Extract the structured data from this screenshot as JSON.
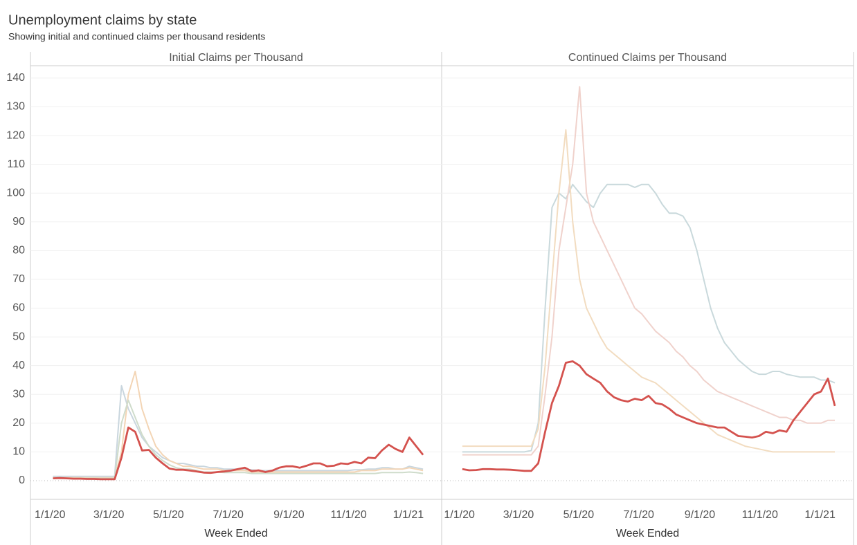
{
  "title": "Unemployment claims by state",
  "subtitle": "Showing initial and continued claims per thousand residents",
  "chart_data": [
    {
      "type": "line",
      "title": "Initial Claims per Thousand",
      "xlabel": "Week Ended",
      "x": [
        "1/4/20",
        "1/11/20",
        "1/18/20",
        "1/25/20",
        "2/1/20",
        "2/8/20",
        "2/15/20",
        "2/22/20",
        "2/29/20",
        "3/7/20",
        "3/14/20",
        "3/21/20",
        "3/28/20",
        "4/4/20",
        "4/11/20",
        "4/18/20",
        "4/25/20",
        "5/2/20",
        "5/9/20",
        "5/16/20",
        "5/23/20",
        "5/30/20",
        "6/6/20",
        "6/13/20",
        "6/20/20",
        "6/27/20",
        "7/4/20",
        "7/11/20",
        "7/18/20",
        "7/25/20",
        "8/1/20",
        "8/8/20",
        "8/15/20",
        "8/22/20",
        "8/29/20",
        "9/5/20",
        "9/12/20",
        "9/19/20",
        "9/26/20",
        "10/3/20",
        "10/10/20",
        "10/17/20",
        "10/24/20",
        "10/31/20",
        "11/7/20",
        "11/14/20",
        "11/21/20",
        "11/28/20",
        "12/5/20",
        "12/12/20",
        "12/19/20",
        "12/26/20",
        "1/2/21",
        "1/9/21",
        "1/16/21"
      ],
      "xlim": [
        "12/12/19",
        "2/4/21"
      ],
      "xticks": [
        "1/1/20",
        "3/1/20",
        "5/1/20",
        "7/1/20",
        "9/1/20",
        "11/1/20",
        "1/1/21"
      ],
      "ylim": [
        -6.5,
        144.3
      ],
      "yticks": [
        0,
        10,
        20,
        30,
        40,
        50,
        60,
        70,
        80,
        90,
        100,
        110,
        120,
        130,
        140
      ],
      "grid": true,
      "series": [
        {
          "color": "#c9d6de",
          "values": [
            1.5,
            1.5,
            1.5,
            1.5,
            1.5,
            1.5,
            1.5,
            1.5,
            1.5,
            1.5,
            33,
            25,
            20,
            15,
            12,
            10,
            8,
            7,
            6,
            6,
            5.5,
            5,
            5,
            4.5,
            4.5,
            4,
            4,
            4,
            4,
            3.8,
            3.5,
            3.5,
            3.5,
            3.5,
            3.5,
            3.5,
            3.5,
            3.5,
            3.5,
            3.5,
            3.5,
            3.5,
            3.5,
            3.5,
            3.8,
            3.8,
            4,
            4,
            4.5,
            4.5,
            4,
            4,
            5,
            4.5,
            4
          ]
        },
        {
          "color": "#f3d5b5",
          "values": [
            1,
            1,
            1,
            1,
            1,
            1,
            1,
            1,
            1,
            1,
            10,
            30,
            38,
            25,
            18,
            12,
            9,
            7,
            6,
            5,
            5,
            4.5,
            4,
            4,
            4,
            3.5,
            3.5,
            3.5,
            3.5,
            3,
            3,
            3,
            3,
            3,
            3,
            3,
            3,
            3,
            3,
            3,
            3,
            3,
            3,
            3,
            3,
            3.5,
            3.5,
            3.5,
            4,
            4,
            4,
            4,
            4.5,
            4,
            3.5
          ]
        },
        {
          "color": "#cfdccb",
          "values": [
            0.8,
            0.8,
            0.8,
            0.8,
            0.8,
            0.8,
            0.8,
            0.8,
            0.8,
            0.8,
            20,
            28,
            22,
            16,
            12,
            9,
            7,
            5.5,
            4.5,
            4,
            4,
            3.5,
            3,
            3,
            3,
            2.8,
            2.8,
            2.8,
            2.8,
            2.5,
            2.5,
            2.5,
            2.5,
            2.5,
            2.5,
            2.5,
            2.5,
            2.5,
            2.5,
            2.5,
            2.5,
            2.5,
            2.5,
            2.5,
            2.5,
            2.5,
            2.5,
            2.5,
            2.8,
            2.8,
            2.8,
            2.8,
            3,
            2.8,
            2.5
          ]
        },
        {
          "color": "#d4524e",
          "values": [
            0.8,
            0.9,
            0.8,
            0.7,
            0.7,
            0.6,
            0.6,
            0.5,
            0.5,
            0.5,
            8,
            18.5,
            17,
            10.5,
            10.7,
            8,
            6,
            4.2,
            3.8,
            3.8,
            3.5,
            3.2,
            2.8,
            2.7,
            3,
            3.2,
            3.5,
            4,
            4.5,
            3.3,
            3.6,
            3,
            3.5,
            4.5,
            5,
            5,
            4.5,
            5.2,
            6,
            6,
            5,
            5.2,
            6,
            5.8,
            6.5,
            6,
            8,
            7.8,
            10.5,
            12.5,
            11,
            10,
            15,
            12,
            9
          ]
        }
      ]
    },
    {
      "type": "line",
      "title": "Continued Claims per Thousand",
      "xlabel": "Week Ended",
      "x": [
        "1/4/20",
        "1/11/20",
        "1/18/20",
        "1/25/20",
        "2/1/20",
        "2/8/20",
        "2/15/20",
        "2/22/20",
        "2/29/20",
        "3/7/20",
        "3/14/20",
        "3/21/20",
        "3/28/20",
        "4/4/20",
        "4/11/20",
        "4/18/20",
        "4/25/20",
        "5/2/20",
        "5/9/20",
        "5/16/20",
        "5/23/20",
        "5/30/20",
        "6/6/20",
        "6/13/20",
        "6/20/20",
        "6/27/20",
        "7/4/20",
        "7/11/20",
        "7/18/20",
        "7/25/20",
        "8/1/20",
        "8/8/20",
        "8/15/20",
        "8/22/20",
        "8/29/20",
        "9/5/20",
        "9/12/20",
        "9/19/20",
        "9/26/20",
        "10/3/20",
        "10/10/20",
        "10/17/20",
        "10/24/20",
        "10/31/20",
        "11/7/20",
        "11/14/20",
        "11/21/20",
        "11/28/20",
        "12/5/20",
        "12/12/20",
        "12/19/20",
        "12/26/20",
        "1/2/21",
        "1/9/21",
        "1/16/21"
      ],
      "xlim": [
        "12/14/19",
        "2/4/21"
      ],
      "xticks": [
        "1/1/20",
        "3/1/20",
        "5/1/20",
        "7/1/20",
        "9/1/20",
        "11/1/20",
        "1/1/21"
      ],
      "ylim": [
        -6.5,
        144.3
      ],
      "series": [
        {
          "color": "#c9d9dc",
          "values": [
            10,
            10,
            10,
            10,
            10,
            10,
            10,
            10,
            10,
            10,
            10.5,
            20,
            60,
            95,
            100,
            98,
            103,
            100,
            97,
            95,
            100,
            103,
            103,
            103,
            103,
            102,
            103,
            103,
            100,
            96,
            93,
            93,
            92,
            88,
            80,
            70,
            60,
            53,
            48,
            45,
            42,
            40,
            38,
            37,
            37,
            38,
            38,
            37,
            36.5,
            36,
            36,
            36,
            35,
            35,
            34
          ]
        },
        {
          "color": "#f0d2cc",
          "values": [
            9,
            9,
            9,
            9,
            9,
            9,
            9,
            9,
            9,
            9,
            9,
            12,
            30,
            50,
            80,
            95,
            110,
            137,
            100,
            90,
            85,
            80,
            75,
            70,
            65,
            60,
            58,
            55,
            52,
            50,
            48,
            45,
            43,
            40,
            38,
            35,
            33,
            31,
            30,
            29,
            28,
            27,
            26,
            25,
            24,
            23,
            22,
            22,
            21,
            21,
            20,
            20,
            20,
            21,
            21
          ]
        },
        {
          "color": "#f2dcc0",
          "values": [
            12,
            12,
            12,
            12,
            12,
            12,
            12,
            12,
            12,
            12,
            12,
            18,
            40,
            70,
            100,
            122,
            90,
            70,
            60,
            55,
            50,
            46,
            44,
            42,
            40,
            38,
            36,
            35,
            34,
            32,
            30,
            28,
            26,
            24,
            22,
            20,
            18,
            16,
            15,
            14,
            13,
            12,
            11.5,
            11,
            10.5,
            10,
            10,
            10,
            10,
            10,
            10,
            10,
            10,
            10,
            10
          ]
        },
        {
          "color": "#d4524e",
          "values": [
            4,
            3.6,
            3.7,
            4,
            4,
            3.9,
            3.9,
            3.8,
            3.6,
            3.4,
            3.4,
            6,
            17,
            27,
            33,
            41,
            41.5,
            40,
            37,
            35.5,
            34,
            31,
            29,
            28,
            27.5,
            28.5,
            28,
            29.5,
            27,
            26.5,
            25,
            23,
            22,
            21,
            20,
            19.5,
            19,
            18.5,
            18.5,
            17,
            15.5,
            15.3,
            15,
            15.5,
            17,
            16.5,
            17.5,
            17,
            21,
            24,
            27,
            30,
            31,
            35.5,
            26
          ]
        }
      ]
    }
  ]
}
